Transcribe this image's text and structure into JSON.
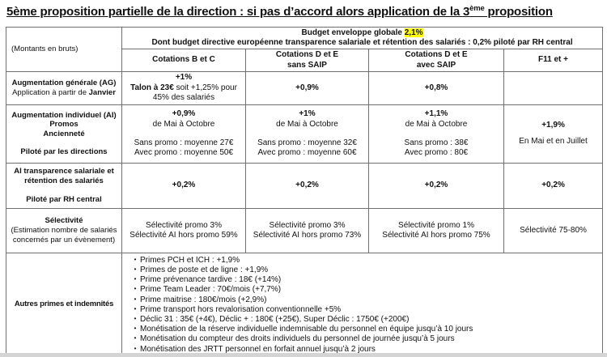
{
  "page": {
    "title_part1": "5ème proposition partielle de la direction : si pas d’accord alors application de la 3",
    "title_sup": "ème",
    "title_part2": " proposition"
  },
  "colors": {
    "highlight": "#ffff00",
    "border": "#6f6f6f",
    "text": "#111111",
    "background": "#ffffff"
  },
  "table": {
    "corner_label": "(Montants en bruts)",
    "budget_header": {
      "line1_prefix": "Budget enveloppe globale ",
      "line1_highlight": "2,1%",
      "line2": "Dont budget directive européenne transparence salariale et rétention des salariés : 0,2% piloté par RH central"
    },
    "columns": [
      {
        "line1": "Cotations B et C",
        "line2": ""
      },
      {
        "line1": "Cotations D et E",
        "line2": "sans SAIP"
      },
      {
        "line1": "Cotations D et E",
        "line2": "avec SAIP"
      },
      {
        "line1": "F11 et +",
        "line2": ""
      }
    ],
    "rows": {
      "ag": {
        "label_bold": "Augmentation générale (AG)",
        "label_line2_prefix": "Application à partir de ",
        "label_line2_bold": "Janvier",
        "c1_line1": "+1%",
        "c1_line2_bold": "Talon à 23€",
        "c1_line2_rest": " soit +1,25% pour 45% des salariés",
        "c2": "+0,9%",
        "c3": "+0,8%",
        "c4": ""
      },
      "ai": {
        "label_line1": "Augmentation individuel (AI)",
        "label_line2": "Promos",
        "label_line3": "Ancienneté",
        "label_footer": "Piloté par les directions",
        "c1_pct": "+0,9%",
        "c1_period": "de Mai à Octobre",
        "c1_sans": "Sans promo : moyenne 27€",
        "c1_avec": "Avec promo : moyenne 50€",
        "c2_pct": "+1%",
        "c2_period": "de Mai à Octobre",
        "c2_sans": "Sans promo : moyenne 32€",
        "c2_avec": "Avec promo : moyenne 60€",
        "c3_pct": "+1,1%",
        "c3_period": "de Mai à Octobre",
        "c3_sans": "Sans promo : 38€",
        "c3_avec": "Avec promo : 80€",
        "c4_pct": "+1,9%",
        "c4_period": "En Mai et en Juillet"
      },
      "transparence": {
        "label_line1": "AI transparence salariale et",
        "label_line2": "rétention des salariés",
        "label_footer": "Piloté par RH central",
        "c1": "+0,2%",
        "c2": "+0,2%",
        "c3": "+0,2%",
        "c4": "+0,2%"
      },
      "selectivite": {
        "label_bold": "Sélectivité",
        "label_sub_line1": "(Estimation nombre de salariés",
        "label_sub_line2": "concernés par un évènement)",
        "c1_line1": "Sélectivité promo 3%",
        "c1_line2": "Sélectivité AI hors promo 59%",
        "c2_line1": "Sélectivité promo 3%",
        "c2_line2": "Sélectivité AI hors promo 73%",
        "c3_line1": "Sélectivité promo 1%",
        "c3_line2": "Sélectivité AI hors promo 75%",
        "c4_line1": "Sélectivité 75-80%"
      },
      "autres": {
        "label": "Autres primes et indemnités",
        "bullet_char": "•",
        "bullets": [
          "Primes PCH et ICH : +1,9%",
          "Primes de poste et de ligne : +1,9%",
          "Prime prévenance tardive : 18€ (+14%)",
          "Prime Team Leader : 70€/mois (+7,7%)",
          "Prime maitrise : 180€/mois (+2,9%)",
          "Prime transport hors revalorisation conventionnelle +5%",
          "Déclic 31 : 35€ (+4€), Déclic + : 180€ (+25€), Super Déclic : 1750€ (+200€)",
          "Monétisation de la réserve individuelle indemnisable du personnel en équipe jusqu’à 10 jours",
          "Monétisation du compteur des droits individuels du personnel de journée jusqu’à 5 jours",
          "Monétisation des JRTT personnel en forfait annuel jusqu’à 2 jours"
        ]
      }
    }
  }
}
